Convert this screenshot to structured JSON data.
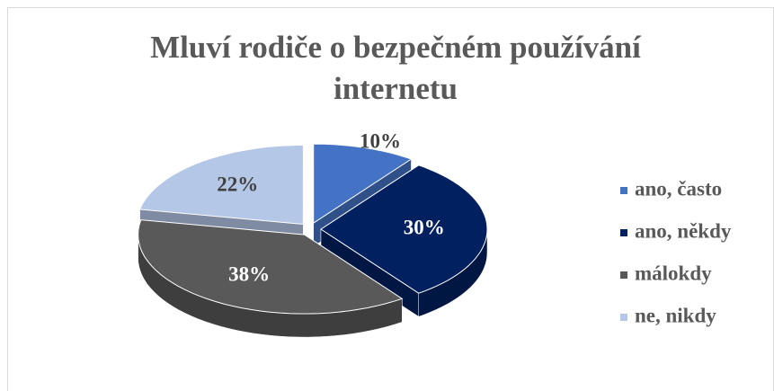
{
  "chart_data": {
    "type": "pie",
    "title": "Mluví rodiče o bezpečném používání internetu",
    "categories": [
      "ano, často",
      "ano, někdy",
      "málokdy",
      "ne, nikdy"
    ],
    "values": [
      10,
      30,
      38,
      22
    ],
    "value_labels": [
      "10%",
      "30%",
      "38%",
      "22%"
    ],
    "colors": [
      "#4472c4",
      "#002060",
      "#595959",
      "#b4c7e7"
    ],
    "legend": "right",
    "exploded": true,
    "3d": true
  }
}
